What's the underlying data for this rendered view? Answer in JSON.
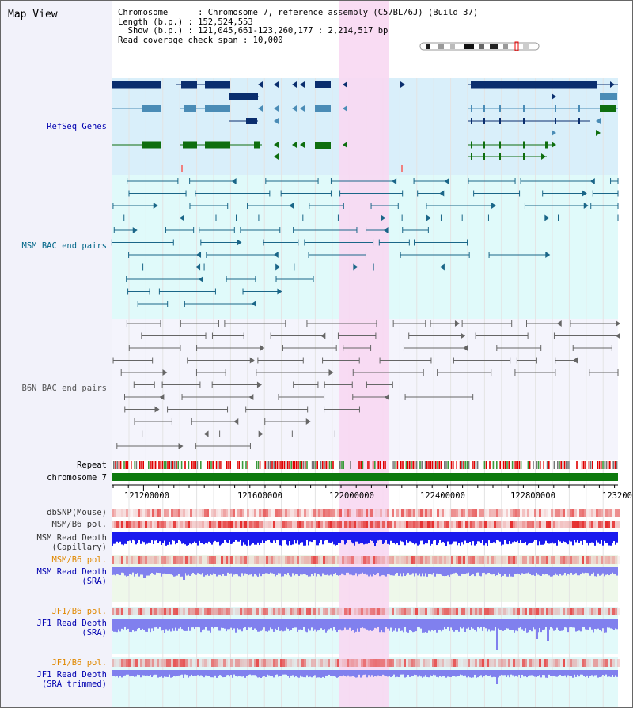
{
  "title": "Map View",
  "header": {
    "lines": [
      "Chromosome      : Chromosome 7, reference assembly (C57BL/6J) (Build 37)",
      "Length (b.p.) : 152,524,553",
      "  Show (b.p.) : 121,045,661-123,260,177 : 2,214,517 bp",
      "Read coverage check span : 10,000"
    ]
  },
  "tracks": {
    "refseq": "RefSeq Genes",
    "msm_bac": "MSM BAC end pairs",
    "b6n_bac": "B6N BAC end pairs",
    "repeat": "Repeat",
    "chromosome": "chromosome 7",
    "dbsnp": "dbSNP(Mouse)",
    "msm_b6_pol": "MSM/B6 pol.",
    "msm_depth_cap_1": "MSM Read Depth",
    "msm_depth_cap_2": "(Capillary)",
    "msm_b6_pol_2": "MSM/B6 pol.",
    "msm_depth_sra_1": "MSM Read Depth",
    "msm_depth_sra_2": "(SRA)",
    "jf1_pol_1": "JF1/B6 pol.",
    "jf1_depth_sra_1": "JF1 Read Depth",
    "jf1_depth_sra_2": "(SRA)",
    "jf1_pol_2": "JF1/B6 pol.",
    "jf1_depth_trim_1": "JF1 Read Depth",
    "jf1_depth_trim_2": "(SRA trimmed)"
  },
  "axis": {
    "ticks": [
      "121200000",
      "121600000",
      "122000000",
      "122400000",
      "122800000",
      "123200"
    ]
  },
  "colors": {
    "refseq_bg": "#d9effa",
    "msm_bac_bg": "#e0fafa",
    "b6n_bac_bg": "#f4f4fc",
    "highlight": "#f8d8f2",
    "gene_dark": "#0a2e6e",
    "gene_mid": "#4a8cb6",
    "gene_green": "#0e6e0e",
    "msm_line": "#1a6688",
    "b6n_line": "#666666",
    "depth_blue": "#1a1aee",
    "depth_light": "#8080ee",
    "label_blue": "#0000b0",
    "label_teal": "#006688",
    "label_orange": "#e08800"
  }
}
